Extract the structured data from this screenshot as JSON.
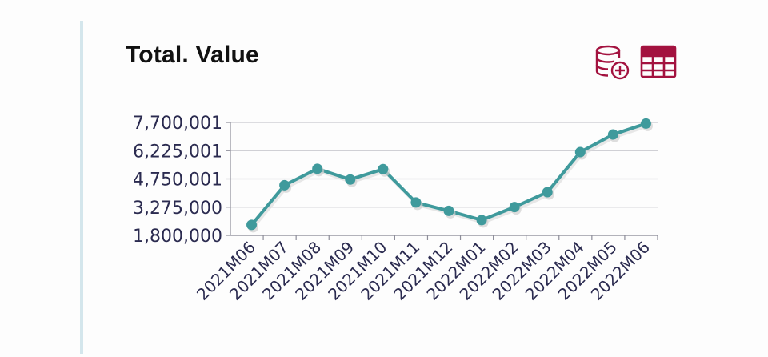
{
  "title": "Total. Value",
  "toolbar": {
    "add_data_icon": "database-plus-icon",
    "table_icon": "table-icon",
    "icon_color": "#a3123f"
  },
  "chart_data": {
    "type": "line",
    "title": "Total. Value",
    "xlabel": "",
    "ylabel": "",
    "categories": [
      "2021M06",
      "2021M07",
      "2021M08",
      "2021M09",
      "2021M10",
      "2021M11",
      "2021M12",
      "2022M01",
      "2022M02",
      "2022M03",
      "2022M04",
      "2022M05",
      "2022M06"
    ],
    "series": [
      {
        "values": [
          2350000,
          4420000,
          5280000,
          4720000,
          5260000,
          3520000,
          3080000,
          2600000,
          3280000,
          4060000,
          6150000,
          7070000,
          7640000
        ]
      }
    ],
    "yticks": [
      "1,800,000",
      "3,275,000",
      "4,750,001",
      "6,225,001",
      "7,700,001"
    ],
    "ytick_values": [
      1800000,
      3275000,
      4750001,
      6225001,
      7700001
    ],
    "ylim": [
      1800000,
      7700001
    ],
    "grid": true,
    "line_color": "#3f9a9c",
    "marker_color": "#3f9a9c"
  }
}
